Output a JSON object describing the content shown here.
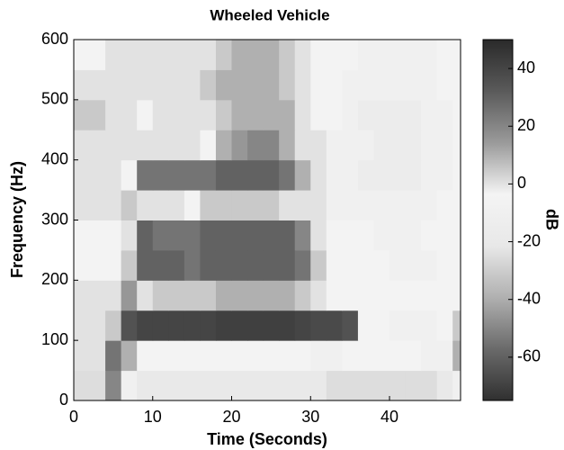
{
  "chart_data": {
    "type": "heatmap",
    "title": "Wheeled Vehicle",
    "x_label": "Time (Seconds)",
    "y_label": "Frequency (Hz)",
    "colorbar_label": "dB",
    "xlim": [
      0,
      49
    ],
    "xticks": [
      0,
      10,
      20,
      30,
      40
    ],
    "ylim": [
      0,
      600
    ],
    "yticks": [
      0,
      100,
      200,
      300,
      400,
      500,
      600
    ],
    "clim": [
      -75,
      50
    ],
    "cticks": [
      40,
      20,
      0,
      -20,
      -40,
      -60
    ],
    "colormap": [
      "#303030",
      "#6a6a6a",
      "#b0b0b0",
      "#e8e8e8",
      "#f4f4f4",
      "#9a9a9a",
      "#5a5a5a",
      "#2a2a2a"
    ],
    "x_edges": [
      0,
      2,
      4,
      6,
      8,
      10,
      12,
      14,
      16,
      18,
      20,
      22,
      24,
      26,
      28,
      30,
      32,
      34,
      36,
      38,
      40,
      42,
      44,
      46,
      48,
      49
    ],
    "y_edges": [
      0,
      50,
      100,
      150,
      200,
      250,
      300,
      350,
      400,
      450,
      500,
      550,
      600
    ],
    "z": [
      [
        -25,
        -25,
        20,
        -10,
        -20,
        -20,
        -20,
        -20,
        -20,
        -20,
        -20,
        -20,
        -20,
        -20,
        -20,
        -20,
        -25,
        -25,
        -25,
        -25,
        -25,
        -25,
        -25,
        -20,
        -10
      ],
      [
        0,
        0,
        25,
        10,
        -5,
        -5,
        -5,
        -5,
        -5,
        -5,
        -5,
        -5,
        -5,
        -5,
        -5,
        -10,
        -10,
        -5,
        -5,
        -5,
        -5,
        -5,
        -10,
        -10,
        10
      ],
      [
        0,
        0,
        5,
        35,
        40,
        40,
        40,
        40,
        40,
        42,
        42,
        42,
        42,
        42,
        40,
        38,
        38,
        35,
        -5,
        -5,
        -10,
        -10,
        -10,
        -5,
        5
      ],
      [
        0,
        0,
        0,
        15,
        0,
        5,
        5,
        5,
        5,
        10,
        10,
        10,
        10,
        10,
        5,
        0,
        -5,
        -5,
        -5,
        -5,
        -5,
        -5,
        -5,
        -5,
        -5
      ],
      [
        -5,
        -5,
        -5,
        5,
        30,
        30,
        30,
        25,
        30,
        30,
        30,
        30,
        30,
        30,
        25,
        5,
        -5,
        -5,
        -5,
        -5,
        -10,
        -10,
        -10,
        -5,
        -5
      ],
      [
        -5,
        -5,
        -5,
        0,
        30,
        25,
        25,
        25,
        30,
        30,
        30,
        30,
        30,
        30,
        20,
        0,
        -5,
        -5,
        -5,
        -10,
        -10,
        -10,
        -5,
        -5,
        -5
      ],
      [
        0,
        0,
        0,
        5,
        0,
        0,
        0,
        -5,
        5,
        5,
        5,
        5,
        5,
        0,
        0,
        0,
        -10,
        -10,
        -10,
        -10,
        -10,
        -10,
        -10,
        -5,
        -5
      ],
      [
        0,
        0,
        0,
        -5,
        25,
        25,
        25,
        25,
        25,
        30,
        30,
        30,
        30,
        25,
        10,
        0,
        -10,
        -10,
        -15,
        -15,
        -15,
        -15,
        -10,
        -10,
        -5
      ],
      [
        0,
        0,
        0,
        0,
        0,
        0,
        0,
        0,
        -5,
        10,
        15,
        20,
        20,
        10,
        0,
        0,
        -10,
        -10,
        -10,
        -15,
        -15,
        -15,
        -10,
        -10,
        -5
      ],
      [
        5,
        5,
        0,
        0,
        -5,
        0,
        0,
        0,
        0,
        5,
        10,
        10,
        10,
        10,
        0,
        -5,
        -5,
        -10,
        -15,
        -15,
        -15,
        -15,
        -10,
        -10,
        -5
      ],
      [
        0,
        0,
        0,
        0,
        0,
        0,
        0,
        0,
        5,
        10,
        10,
        10,
        10,
        5,
        0,
        -5,
        -5,
        -10,
        -10,
        -10,
        -10,
        -10,
        -10,
        -5,
        -5
      ],
      [
        -5,
        -5,
        0,
        0,
        0,
        0,
        0,
        0,
        0,
        5,
        10,
        10,
        10,
        5,
        0,
        -5,
        -5,
        -5,
        -10,
        -10,
        -10,
        -10,
        -10,
        -5,
        -5
      ]
    ]
  }
}
